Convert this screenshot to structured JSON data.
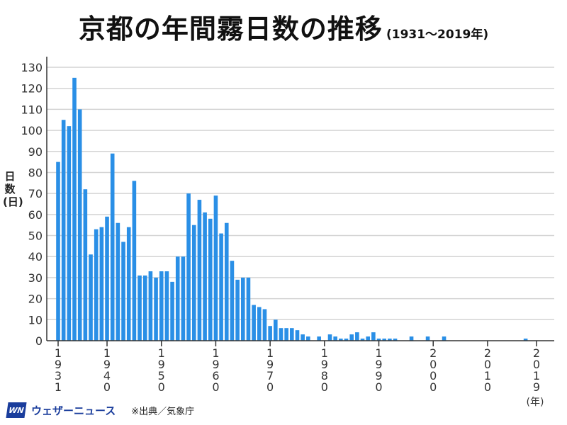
{
  "chart_data": {
    "type": "bar",
    "title": "京都の年間霧日数の推移",
    "subtitle": "(1931〜2019年)",
    "ylabel": "日数(日)",
    "xlabel": "(年)",
    "ylim": [
      0,
      130
    ],
    "yticks": [
      0,
      10,
      20,
      30,
      40,
      50,
      60,
      70,
      80,
      90,
      100,
      110,
      120,
      130
    ],
    "xticks": [
      1931,
      1940,
      1950,
      1960,
      1970,
      1980,
      1990,
      2000,
      2010,
      2019
    ],
    "grid": true,
    "bar_color": "#2a8fe6",
    "x": [
      1931,
      1932,
      1933,
      1934,
      1935,
      1936,
      1937,
      1938,
      1939,
      1940,
      1941,
      1942,
      1943,
      1944,
      1945,
      1946,
      1947,
      1948,
      1949,
      1950,
      1951,
      1952,
      1953,
      1954,
      1955,
      1956,
      1957,
      1958,
      1959,
      1960,
      1961,
      1962,
      1963,
      1964,
      1965,
      1966,
      1967,
      1968,
      1969,
      1970,
      1971,
      1972,
      1973,
      1974,
      1975,
      1976,
      1977,
      1978,
      1979,
      1980,
      1981,
      1982,
      1983,
      1984,
      1985,
      1986,
      1987,
      1988,
      1989,
      1990,
      1991,
      1992,
      1993,
      1994,
      1995,
      1996,
      1997,
      1998,
      1999,
      2000,
      2001,
      2002,
      2003,
      2004,
      2005,
      2006,
      2007,
      2008,
      2009,
      2010,
      2011,
      2012,
      2013,
      2014,
      2015,
      2016,
      2017,
      2018,
      2019
    ],
    "values": [
      85,
      105,
      102,
      125,
      110,
      72,
      41,
      53,
      54,
      59,
      89,
      56,
      47,
      54,
      76,
      31,
      31,
      33,
      30,
      33,
      33,
      28,
      40,
      40,
      70,
      55,
      67,
      61,
      58,
      69,
      51,
      56,
      38,
      29,
      30,
      30,
      17,
      16,
      15,
      7,
      10,
      6,
      6,
      6,
      5,
      3,
      2,
      0,
      2,
      0,
      3,
      2,
      1,
      1,
      3,
      4,
      1,
      2,
      4,
      1,
      1,
      1,
      1,
      0,
      0,
      2,
      0,
      0,
      2,
      0,
      0,
      2,
      0,
      0,
      0,
      0,
      0,
      0,
      0,
      0,
      0,
      0,
      0,
      0,
      0,
      0,
      1,
      0,
      0
    ]
  },
  "footer": {
    "logo_text": "WN",
    "brand": "ウェザーニュース",
    "source": "※出典／気象庁"
  }
}
